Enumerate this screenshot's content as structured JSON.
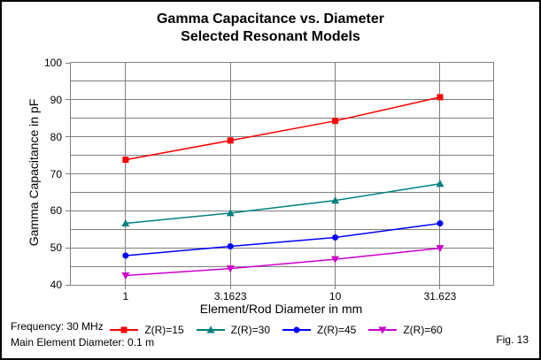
{
  "title": {
    "line1": "Gamma Capacitance vs. Diameter",
    "line2": "Selected Resonant Models"
  },
  "axes": {
    "x_title": "Element/Rod Diameter in mm",
    "y_title": "Gamma Capacitance in pF"
  },
  "notes": {
    "frequency": "Frequency: 30 MHz",
    "main_element_diameter": "Main Element Diameter: 0.1 m",
    "figure_label": "Fig. 13"
  },
  "colors": {
    "grid": "#808080",
    "border": "#000000",
    "background": "#FFFFFF"
  },
  "chart_data": {
    "type": "line",
    "title": "Gamma Capacitance vs. Diameter",
    "subtitle": "Selected Resonant Models",
    "xlabel": "Element/Rod Diameter in mm",
    "ylabel": "Gamma Capacitance in pF",
    "x_scale": "log",
    "x": [
      1,
      3.1623,
      10,
      31.623
    ],
    "x_tick_labels": [
      "1",
      "3.1623",
      "10",
      "31.623"
    ],
    "xlim": [
      0.548,
      56.7
    ],
    "ylim": [
      40,
      100
    ],
    "y_ticks": [
      40,
      50,
      60,
      70,
      80,
      90,
      100
    ],
    "y_grid_step": 5,
    "grid": true,
    "legend_position": "bottom",
    "series": [
      {
        "name": "Z(R)=15",
        "color": "#FF0000",
        "marker": "square",
        "values": [
          73.8,
          79.0,
          84.3,
          90.7
        ]
      },
      {
        "name": "Z(R)=30",
        "color": "#008080",
        "marker": "triangle-up",
        "values": [
          56.6,
          59.4,
          62.8,
          67.3
        ]
      },
      {
        "name": "Z(R)=45",
        "color": "#0000FF",
        "marker": "circle",
        "values": [
          47.9,
          50.4,
          52.8,
          56.6
        ]
      },
      {
        "name": "Z(R)=60",
        "color": "#CC00CC",
        "marker": "triangle-down",
        "values": [
          42.5,
          44.4,
          46.9,
          49.9
        ]
      }
    ]
  }
}
